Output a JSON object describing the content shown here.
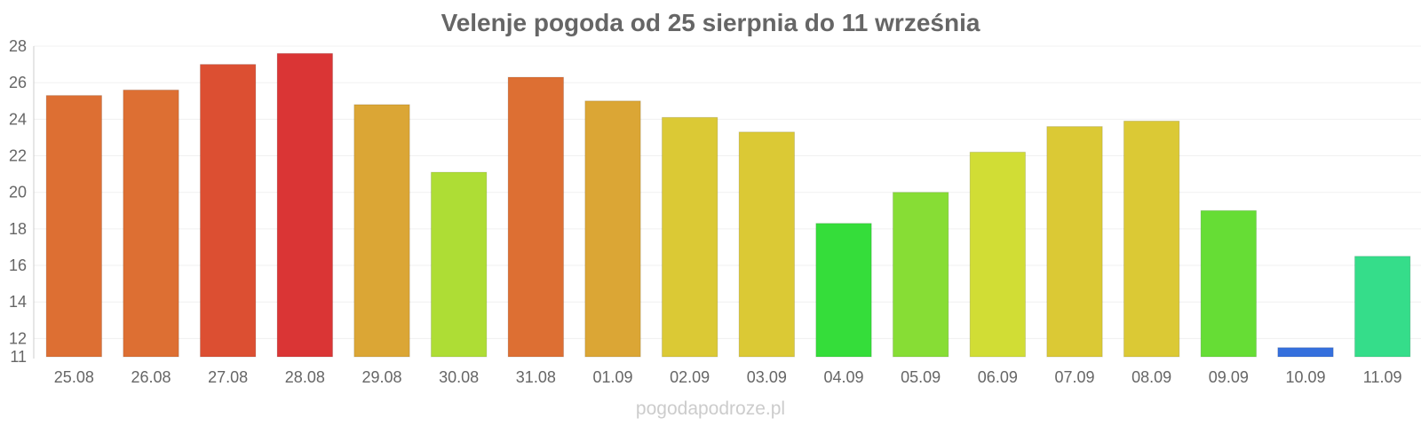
{
  "chart_data": {
    "type": "bar",
    "title": "Velenje pogoda od 25 sierpnia do 11 września",
    "xlabel": "",
    "ylabel": "",
    "categories": [
      "25.08",
      "26.08",
      "27.08",
      "28.08",
      "29.08",
      "30.08",
      "31.08",
      "01.09",
      "02.09",
      "03.09",
      "04.09",
      "05.09",
      "06.09",
      "07.09",
      "08.09",
      "09.09",
      "10.09",
      "11.09"
    ],
    "values": [
      25.3,
      25.6,
      27.0,
      27.6,
      24.8,
      21.1,
      26.3,
      25.0,
      24.1,
      23.3,
      18.3,
      20.0,
      22.2,
      23.6,
      23.9,
      19.0,
      11.5,
      16.5
    ],
    "colors": [
      "#dd6f33",
      "#dd6f33",
      "#dc4f32",
      "#da3535",
      "#dba635",
      "#aedd35",
      "#dd6f33",
      "#dba635",
      "#dbc935",
      "#dbc935",
      "#35dd3a",
      "#87dd35",
      "#d1dd35",
      "#dbc935",
      "#dbc935",
      "#66dd35",
      "#3570dd",
      "#35dd8a"
    ],
    "ylim": [
      11,
      28
    ],
    "yticks": [
      11,
      12,
      14,
      16,
      18,
      20,
      22,
      24,
      26,
      28
    ],
    "grid": true,
    "legend": "none"
  },
  "watermark": "pogodapodroze.pl"
}
